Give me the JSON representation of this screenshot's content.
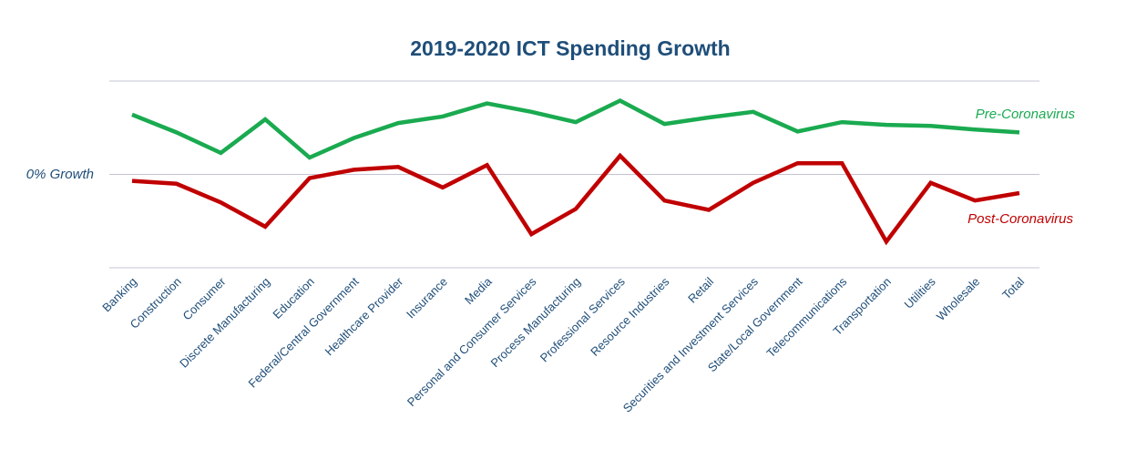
{
  "chart_data": {
    "type": "line",
    "title": "2019-2020 ICT Spending Growth",
    "xlabel": "",
    "ylabel": "",
    "zero_line_label": "0% Growth",
    "ylim": [
      -1.0,
      1.0
    ],
    "grid": true,
    "categories": [
      "Banking",
      "Construction",
      "Consumer",
      "Discrete Manufacturing",
      "Education",
      "Federal/Central Government",
      "Healthcare Provider",
      "Insurance",
      "Media",
      "Personal and Consumer Services",
      "Process Manufacturing",
      "Professional Services",
      "Resource Industries",
      "Retail",
      "Securities and Investment Services",
      "State/Local Government",
      "Telecommunications",
      "Transportation",
      "Utilities",
      "Wholesale",
      "Total"
    ],
    "series": [
      {
        "name": "Pre-Coronavirus",
        "color": "#1aaa50",
        "values": [
          0.64,
          0.45,
          0.23,
          0.59,
          0.18,
          0.39,
          0.55,
          0.62,
          0.76,
          0.67,
          0.56,
          0.79,
          0.54,
          0.61,
          0.67,
          0.46,
          0.56,
          0.53,
          0.52,
          0.48,
          0.45
        ]
      },
      {
        "name": "Post-Coronavirus",
        "color": "#c00000",
        "values": [
          -0.07,
          -0.1,
          -0.3,
          -0.56,
          -0.04,
          0.05,
          0.08,
          -0.14,
          0.1,
          -0.64,
          -0.37,
          0.2,
          -0.28,
          -0.38,
          -0.09,
          0.12,
          0.12,
          -0.72,
          -0.09,
          -0.28,
          -0.2
        ]
      }
    ]
  }
}
